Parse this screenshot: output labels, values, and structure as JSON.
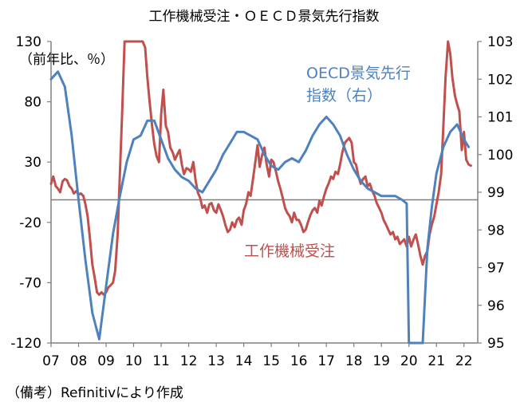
{
  "chart_data": {
    "type": "line",
    "title": "工作機械受注・ＯＥＣＤ景気先行指数",
    "left_axis": {
      "unit_label": "（前年比、％）",
      "ylim": [
        -120,
        130
      ],
      "ticks": [
        130,
        80,
        30,
        -20,
        -70,
        -120
      ],
      "tick_labels": [
        "130",
        "80",
        "30",
        "-20",
        "-70",
        "-120"
      ]
    },
    "right_axis": {
      "ylim": [
        95,
        103
      ],
      "ticks": [
        103,
        102,
        101,
        100,
        99,
        98,
        97,
        96,
        95
      ],
      "tick_labels": [
        "103",
        "102",
        "101",
        "100",
        "99",
        "98",
        "97",
        "96",
        "95"
      ]
    },
    "x_axis": {
      "xlim": [
        2007.0,
        2022.5
      ],
      "ticks": [
        2007,
        2008,
        2009,
        2010,
        2011,
        2012,
        2013,
        2014,
        2015,
        2016,
        2017,
        2018,
        2019,
        2020,
        2021,
        2022
      ],
      "tick_labels": [
        "07",
        "08",
        "09",
        "10",
        "11",
        "12",
        "13",
        "14",
        "15",
        "16",
        "17",
        "18",
        "19",
        "20",
        "21",
        "22"
      ]
    },
    "reference_line": {
      "axis": "right",
      "value": 98.8
    },
    "series": [
      {
        "name": "工作機械受注",
        "axis": "left",
        "color": "#c0504d",
        "label_lines": [
          "工作機械受注"
        ],
        "x": [
          2007.0,
          2007.08,
          2007.17,
          2007.25,
          2007.33,
          2007.42,
          2007.5,
          2007.58,
          2007.67,
          2007.75,
          2007.83,
          2007.92,
          2008.0,
          2008.08,
          2008.17,
          2008.25,
          2008.33,
          2008.42,
          2008.5,
          2008.58,
          2008.67,
          2008.75,
          2008.83,
          2008.92,
          2009.0,
          2009.08,
          2009.17,
          2009.25,
          2009.33,
          2009.42,
          2009.5,
          2009.58,
          2009.67,
          2009.75,
          2009.83,
          2009.92,
          2010.0,
          2010.08,
          2010.17,
          2010.25,
          2010.33,
          2010.42,
          2010.5,
          2010.58,
          2010.67,
          2010.75,
          2010.83,
          2010.92,
          2011.0,
          2011.08,
          2011.17,
          2011.25,
          2011.33,
          2011.42,
          2011.5,
          2011.58,
          2011.67,
          2011.75,
          2011.83,
          2011.92,
          2012.0,
          2012.08,
          2012.17,
          2012.25,
          2012.33,
          2012.42,
          2012.5,
          2012.58,
          2012.67,
          2012.75,
          2012.83,
          2012.92,
          2013.0,
          2013.08,
          2013.17,
          2013.25,
          2013.33,
          2013.42,
          2013.5,
          2013.58,
          2013.67,
          2013.75,
          2013.83,
          2013.92,
          2014.0,
          2014.08,
          2014.17,
          2014.25,
          2014.33,
          2014.42,
          2014.5,
          2014.58,
          2014.67,
          2014.75,
          2014.83,
          2014.92,
          2015.0,
          2015.08,
          2015.17,
          2015.25,
          2015.33,
          2015.42,
          2015.5,
          2015.58,
          2015.67,
          2015.75,
          2015.83,
          2015.92,
          2016.0,
          2016.08,
          2016.17,
          2016.25,
          2016.33,
          2016.42,
          2016.5,
          2016.58,
          2016.67,
          2016.75,
          2016.83,
          2016.92,
          2017.0,
          2017.08,
          2017.17,
          2017.25,
          2017.33,
          2017.42,
          2017.5,
          2017.58,
          2017.67,
          2017.75,
          2017.83,
          2017.92,
          2018.0,
          2018.08,
          2018.17,
          2018.25,
          2018.33,
          2018.42,
          2018.5,
          2018.58,
          2018.67,
          2018.75,
          2018.83,
          2018.92,
          2019.0,
          2019.08,
          2019.17,
          2019.25,
          2019.33,
          2019.42,
          2019.5,
          2019.58,
          2019.67,
          2019.75,
          2019.83,
          2019.92,
          2020.0,
          2020.08,
          2020.17,
          2020.25,
          2020.33,
          2020.42,
          2020.5,
          2020.58,
          2020.67,
          2020.75,
          2020.83,
          2020.92,
          2021.0,
          2021.08,
          2021.17,
          2021.25,
          2021.33,
          2021.42,
          2021.5,
          2021.58,
          2021.67,
          2021.75,
          2021.83,
          2021.92,
          2022.0,
          2022.08,
          2022.17,
          2022.25
        ],
        "values": [
          12,
          18,
          10,
          8,
          5,
          14,
          16,
          15,
          10,
          8,
          4,
          6,
          3,
          4,
          2,
          -5,
          -15,
          -35,
          -55,
          -65,
          -78,
          -80,
          -78,
          -80,
          -78,
          -74,
          -72,
          -70,
          -60,
          -30,
          20,
          70,
          130,
          130,
          130,
          130,
          130,
          130,
          130,
          130,
          130,
          125,
          100,
          80,
          60,
          45,
          35,
          30,
          70,
          90,
          60,
          55,
          42,
          38,
          32,
          36,
          40,
          28,
          20,
          25,
          24,
          22,
          30,
          15,
          5,
          0,
          -8,
          -6,
          -12,
          -5,
          -4,
          -10,
          -12,
          -5,
          -10,
          -15,
          -22,
          -28,
          -26,
          -20,
          -24,
          -18,
          -16,
          -22,
          -10,
          -5,
          5,
          2,
          15,
          30,
          44,
          26,
          36,
          42,
          28,
          18,
          32,
          30,
          22,
          14,
          8,
          0,
          -8,
          -12,
          -15,
          -20,
          -12,
          -18,
          -18,
          -22,
          -28,
          -26,
          -20,
          -14,
          -10,
          -8,
          -12,
          -2,
          -6,
          2,
          8,
          12,
          18,
          16,
          22,
          20,
          28,
          38,
          46,
          48,
          50,
          46,
          30,
          28,
          18,
          12,
          16,
          18,
          10,
          12,
          6,
          2,
          -4,
          -8,
          -12,
          -18,
          -22,
          -26,
          -30,
          -28,
          -34,
          -32,
          -38,
          -36,
          -34,
          -40,
          -32,
          -40,
          -34,
          -30,
          -38,
          -48,
          -55,
          -48,
          -44,
          -30,
          -22,
          -15,
          -5,
          5,
          20,
          60,
          100,
          130,
          120,
          100,
          85,
          78,
          72,
          40,
          55,
          32,
          28,
          27
        ]
      },
      {
        "name": "OECD景気先行指数",
        "axis": "right",
        "color": "#4f81bd",
        "label_lines": [
          "OECD景気先行",
          "指数（右）"
        ],
        "x": [
          2007.0,
          2007.25,
          2007.5,
          2007.75,
          2008.0,
          2008.25,
          2008.5,
          2008.75,
          2009.0,
          2009.25,
          2009.5,
          2009.75,
          2010.0,
          2010.25,
          2010.5,
          2010.75,
          2011.0,
          2011.25,
          2011.5,
          2011.75,
          2012.0,
          2012.25,
          2012.5,
          2012.75,
          2013.0,
          2013.25,
          2013.5,
          2013.75,
          2014.0,
          2014.25,
          2014.5,
          2014.75,
          2015.0,
          2015.25,
          2015.5,
          2015.75,
          2016.0,
          2016.25,
          2016.5,
          2016.75,
          2017.0,
          2017.25,
          2017.5,
          2017.75,
          2018.0,
          2018.25,
          2018.5,
          2018.75,
          2019.0,
          2019.25,
          2019.5,
          2019.75,
          2019.92,
          2020.0,
          2020.08,
          2020.17,
          2020.25,
          2020.33,
          2020.42,
          2020.5,
          2020.67,
          2020.83,
          2021.0,
          2021.25,
          2021.5,
          2021.75,
          2022.0,
          2022.17
        ],
        "values": [
          102.0,
          102.2,
          101.8,
          100.5,
          98.8,
          97.2,
          95.8,
          95.1,
          96.5,
          97.9,
          98.9,
          99.8,
          100.4,
          100.5,
          100.9,
          100.9,
          100.4,
          99.9,
          99.6,
          99.4,
          99.3,
          99.1,
          99.0,
          99.3,
          99.6,
          100.0,
          100.3,
          100.6,
          100.6,
          100.5,
          100.4,
          100.0,
          99.7,
          99.6,
          99.8,
          99.9,
          99.8,
          100.1,
          100.5,
          100.8,
          101.0,
          100.8,
          100.5,
          100.0,
          99.6,
          99.3,
          99.1,
          99.0,
          98.9,
          98.9,
          98.9,
          98.8,
          98.7,
          95.0,
          95.0,
          95.0,
          95.0,
          95.0,
          95.0,
          95.0,
          97.5,
          98.6,
          99.5,
          100.2,
          100.6,
          100.8,
          100.4,
          100.2
        ]
      }
    ]
  },
  "footnote": "（備考）Refinitivにより作成"
}
